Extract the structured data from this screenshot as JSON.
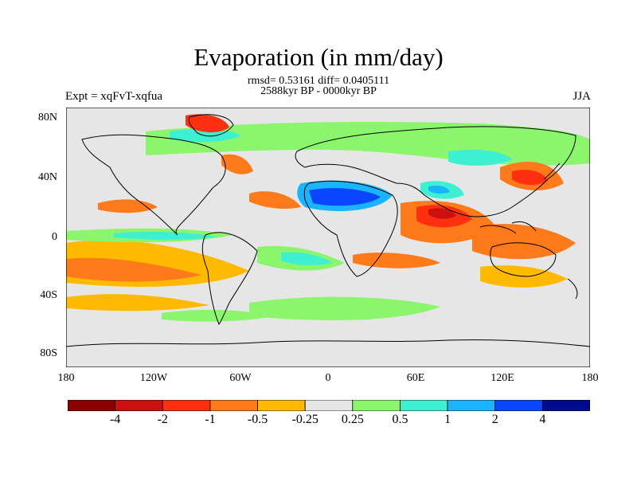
{
  "title": "Evaporation (in mm/day)",
  "stats": "rmsd= 0.53161 diff= 0.0405111",
  "period": "2588kyr BP - 0000kyr BP",
  "experiment": "Expt = xqFvT-xqfua",
  "season": "JJA",
  "lat_ticks": [
    "80N",
    "40N",
    "0",
    "40S",
    "80S"
  ],
  "lon_ticks": [
    "180",
    "120W",
    "60W",
    "0",
    "60E",
    "120E",
    "180"
  ],
  "colorbar": {
    "labels": [
      "-4",
      "-2",
      "-1",
      "-0.5",
      "-0.25",
      "0.25",
      "0.5",
      "1",
      "2",
      "4"
    ],
    "colors": [
      "#8b0000",
      "#cc1010",
      "#ff3010",
      "#ff7a1a",
      "#ffba00",
      "#e6e6e6",
      "#8cf56e",
      "#3ef0d2",
      "#1ab4ff",
      "#0a46ff",
      "#000a8c"
    ]
  },
  "map": {
    "background": "#e6e6e6",
    "coast": "#000000"
  }
}
